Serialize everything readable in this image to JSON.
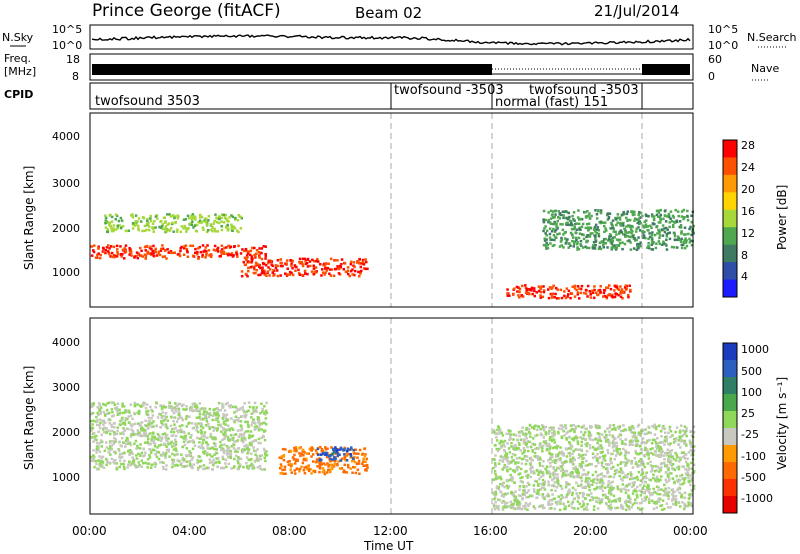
{
  "header": {
    "title": "Prince George (fitACF)",
    "beam": "Beam 02",
    "date": "21/Jul/2014"
  },
  "nsky_panel": {
    "label": "N.Sky",
    "ticks_left": [
      "10^5",
      "10^0"
    ],
    "ticks_right": [
      "10^5",
      "10^0"
    ],
    "right_label": "N.Search"
  },
  "freq_panel": {
    "label_line1": "Freq.",
    "label_line2": "[MHz]",
    "ticks_left": [
      "18",
      "8"
    ],
    "ticks_right": [
      "60",
      "0"
    ],
    "right_label": "Nave"
  },
  "cpid_panel": {
    "label": "CPID",
    "segments": [
      {
        "text": "twofsound 3503",
        "start_h": 0.0
      },
      {
        "text": "twofsound -3503",
        "start_h": 12.0
      },
      {
        "text": "normal (fast) 151",
        "start_h": 16.0
      },
      {
        "text": "twofsound -3503",
        "start_h": 16.0
      },
      {
        "text": "",
        "start_h": 22.0
      }
    ]
  },
  "power_panel": {
    "ylabel": "Slant Range [km]",
    "yticks": [
      "4000",
      "3000",
      "2000",
      "1000"
    ],
    "colorbar_label": "Power [dB]",
    "colorbar_ticks": [
      "28",
      "24",
      "20",
      "16",
      "12",
      "8",
      "4"
    ],
    "colors": [
      "#ff0000",
      "#ff5000",
      "#ff9a00",
      "#ffd400",
      "#a6d83a",
      "#4fa84f",
      "#3f7a63",
      "#2e4ea8",
      "#1c1cff"
    ]
  },
  "velocity_panel": {
    "ylabel": "Slant Range [km]",
    "yticks": [
      "4000",
      "3000",
      "2000",
      "1000"
    ],
    "colorbar_label": "Velocity [m s⁻¹]",
    "colorbar_ticks": [
      "1000",
      "500",
      "100",
      "25",
      "-25",
      "-100",
      "-500",
      "-1000"
    ],
    "colors": [
      "#1c3cbf",
      "#2d5fc0",
      "#2e7f66",
      "#49a84a",
      "#8fd85a",
      "#c8c8c0",
      "#ff9a00",
      "#ff6a00",
      "#ff3000",
      "#e60000"
    ]
  },
  "time_axis": {
    "ticks": [
      "00:00",
      "04:00",
      "08:00",
      "12:00",
      "16:00",
      "20:00",
      "00:00"
    ],
    "label": "Time UT"
  },
  "chart_data": {
    "type": "heatmap",
    "title": "Prince George (fitACF)",
    "subtitle": "Beam 02",
    "date": "21/Jul/2014",
    "x_range_hours": [
      0,
      24
    ],
    "xlabel": "Time UT",
    "ylabel": "Slant Range [km]",
    "ylim_km": [
      180,
      4560
    ],
    "mode_change_times_h": [
      12.0,
      16.0,
      22.0
    ],
    "panels": [
      {
        "name": "Power",
        "unit": "dB",
        "range": [
          0,
          30
        ],
        "features": [
          {
            "t_start": 0.0,
            "t_end": 7.0,
            "range_km": [
              1300,
              1600
            ],
            "value": 28
          },
          {
            "t_start": 6.0,
            "t_end": 11.0,
            "range_km": [
              900,
              1300
            ],
            "value": 28
          },
          {
            "t_start": 0.5,
            "t_end": 6.0,
            "range_km": [
              1900,
              2300
            ],
            "value": 14
          },
          {
            "t_start": 16.5,
            "t_end": 21.5,
            "range_km": [
              400,
              700
            ],
            "value": 28
          },
          {
            "t_start": 18.0,
            "t_end": 24.0,
            "range_km": [
              1500,
              2400
            ],
            "value": 10
          }
        ]
      },
      {
        "name": "Velocity",
        "unit": "m s^-1",
        "range": [
          -1000,
          1000
        ],
        "features": [
          {
            "t_start": 0.0,
            "t_end": 7.0,
            "range_km": [
              1200,
              2700
            ],
            "value": 0
          },
          {
            "t_start": 7.5,
            "t_end": 11.0,
            "range_km": [
              1100,
              1700
            ],
            "value": -500
          },
          {
            "t_start": 9.0,
            "t_end": 10.5,
            "range_km": [
              1400,
              1700
            ],
            "value": 800
          },
          {
            "t_start": 16.0,
            "t_end": 24.0,
            "range_km": [
              300,
              2200
            ],
            "value": 0
          }
        ]
      }
    ]
  }
}
